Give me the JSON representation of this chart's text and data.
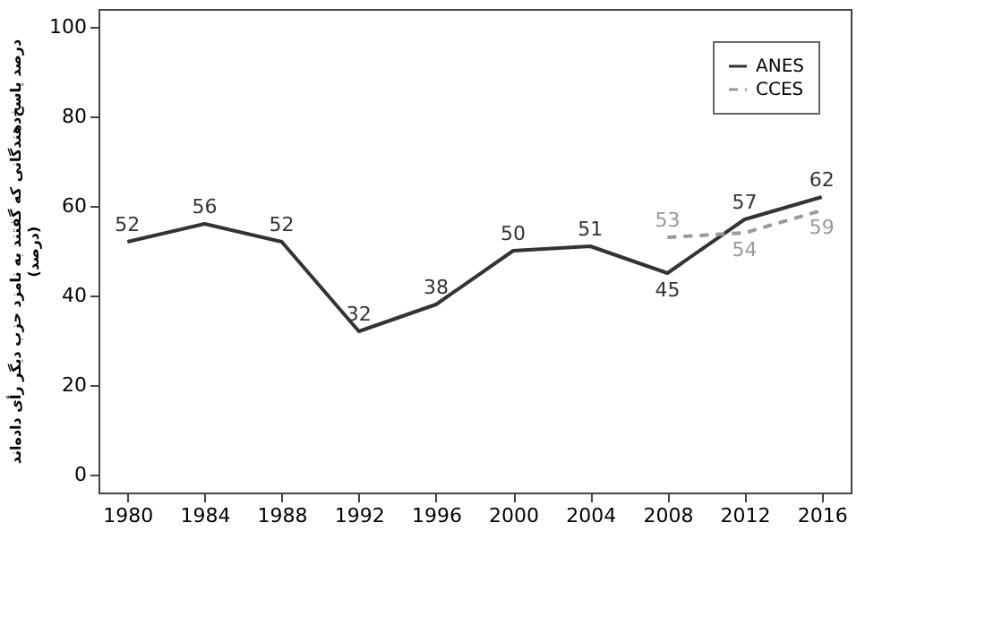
{
  "chart_data": {
    "type": "line",
    "ylabel": [
      "درصد پاسخ‌دهندگانی که گفتند به نامزد حزب دیگر رأی داده‌اند",
      "(درصد)"
    ],
    "xlim": [
      1978.5,
      2017.5
    ],
    "xticks": [
      1980,
      1984,
      1988,
      1992,
      1996,
      2000,
      2004,
      2008,
      2012,
      2016
    ],
    "ylim": [
      -4,
      104
    ],
    "yticks": [
      0,
      20,
      40,
      60,
      80,
      100
    ],
    "grid": false,
    "legend": "top right",
    "data_labels": true,
    "marker": "none",
    "series": [
      {
        "name": "ANES",
        "color": "#333333",
        "line_style": "solid",
        "x": [
          1980,
          1984,
          1988,
          1992,
          1996,
          2000,
          2004,
          2008,
          2012,
          2016
        ],
        "values": [
          52,
          56,
          52,
          32,
          38,
          50,
          51,
          45,
          57,
          62
        ]
      },
      {
        "name": "CCES",
        "color": "#999999",
        "line_style": "dashed",
        "x": [
          2008,
          2012,
          2016
        ],
        "values": [
          53,
          54,
          59
        ]
      }
    ]
  }
}
